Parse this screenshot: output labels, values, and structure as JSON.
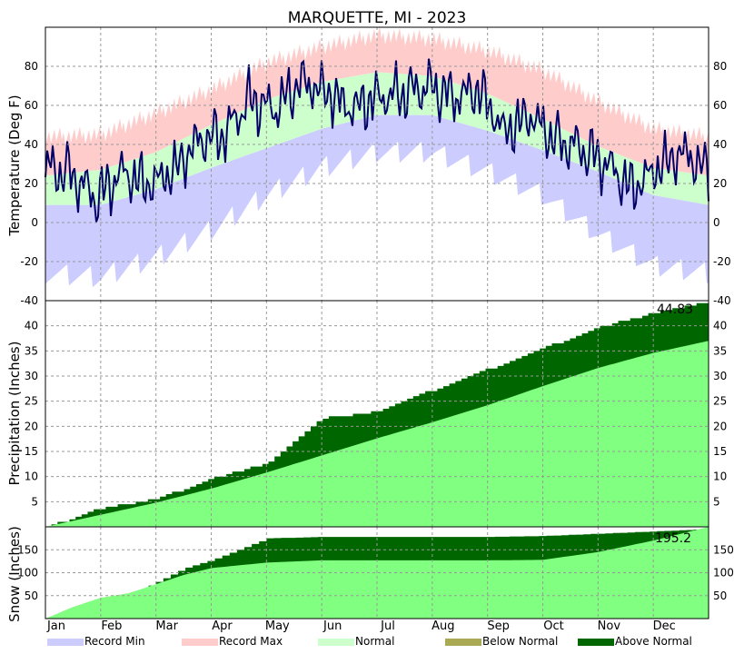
{
  "chart_data": {
    "type": "area",
    "title": "MARQUETTE, MI - 2023",
    "months": [
      "Jan",
      "Feb",
      "Mar",
      "Apr",
      "May",
      "Jun",
      "Jul",
      "Aug",
      "Sep",
      "Oct",
      "Nov",
      "Dec"
    ],
    "legend": [
      {
        "label": "Record Min",
        "color": "#ccccff"
      },
      {
        "label": "Record Max",
        "color": "#ffcccc"
      },
      {
        "label": "Normal",
        "color": "#ccffcc"
      },
      {
        "label": "Below Normal",
        "color": "#aaaa55"
      },
      {
        "label": "Above Normal",
        "color": "#006600"
      }
    ],
    "panels": [
      {
        "name": "temperature",
        "ylabel": "Temperature (Deg F)",
        "ylim": [
          -40,
          100
        ],
        "ticks": [
          -40,
          -20,
          0,
          20,
          40,
          60,
          80
        ],
        "month_x": [
          0,
          1,
          2,
          3,
          4,
          5,
          6,
          7,
          8,
          9,
          10,
          11,
          12
        ],
        "record_max": [
          44,
          45,
          56,
          68,
          82,
          90,
          96,
          94,
          88,
          78,
          62,
          48,
          44
        ],
        "normal_high": [
          24,
          27,
          36,
          50,
          63,
          72,
          77,
          75,
          66,
          53,
          39,
          28,
          24
        ],
        "normal_low": [
          9,
          9,
          17,
          28,
          38,
          48,
          55,
          55,
          47,
          37,
          26,
          14,
          9
        ],
        "record_min": [
          -26,
          -28,
          -18,
          -4,
          14,
          28,
          36,
          36,
          26,
          14,
          -6,
          -22,
          -26
        ],
        "observed": [
          28,
          25,
          12,
          26,
          19,
          26,
          42,
          45,
          63,
          58,
          72,
          67,
          58,
          64,
          66,
          70,
          64,
          68,
          46,
          55,
          42,
          38,
          30,
          17,
          28,
          36,
          26
        ],
        "grid": true
      },
      {
        "name": "precipitation",
        "ylabel": "Precipitation (Inches)",
        "ylim": [
          0,
          45
        ],
        "ticks": [
          5,
          10,
          15,
          20,
          25,
          30,
          35,
          40
        ],
        "total_label": "44.83",
        "month_x": [
          0,
          1,
          2,
          3,
          4,
          5,
          6,
          7,
          8,
          9,
          10,
          11,
          12
        ],
        "normal": [
          0,
          2.4,
          4.8,
          7.6,
          10.8,
          14.2,
          17.6,
          20.8,
          24.2,
          28.0,
          31.6,
          34.6,
          37.0
        ],
        "observed": [
          0,
          3.8,
          5.6,
          9.6,
          12.8,
          21.6,
          23.0,
          27.3,
          31.4,
          35.6,
          39.8,
          42.6,
          44.83
        ],
        "grid": true
      },
      {
        "name": "snow",
        "ylabel": "Snow (Inches)",
        "ylim": [
          0,
          200
        ],
        "ticks": [
          50,
          100,
          150
        ],
        "total_label": "195.2",
        "month_x": [
          0,
          0.5,
          1,
          1.5,
          2,
          2.5,
          3,
          4,
          5,
          6,
          7,
          8,
          9,
          10,
          11,
          12
        ],
        "normal": [
          0,
          25,
          45,
          55,
          75,
          95,
          110,
          122,
          127,
          127,
          127,
          127,
          128,
          145,
          170,
          200
        ],
        "observed": [
          0,
          22,
          40,
          50,
          80,
          110,
          128,
          175,
          178,
          178,
          178,
          178,
          180,
          185,
          190,
          195.2
        ],
        "grid": true
      }
    ]
  }
}
